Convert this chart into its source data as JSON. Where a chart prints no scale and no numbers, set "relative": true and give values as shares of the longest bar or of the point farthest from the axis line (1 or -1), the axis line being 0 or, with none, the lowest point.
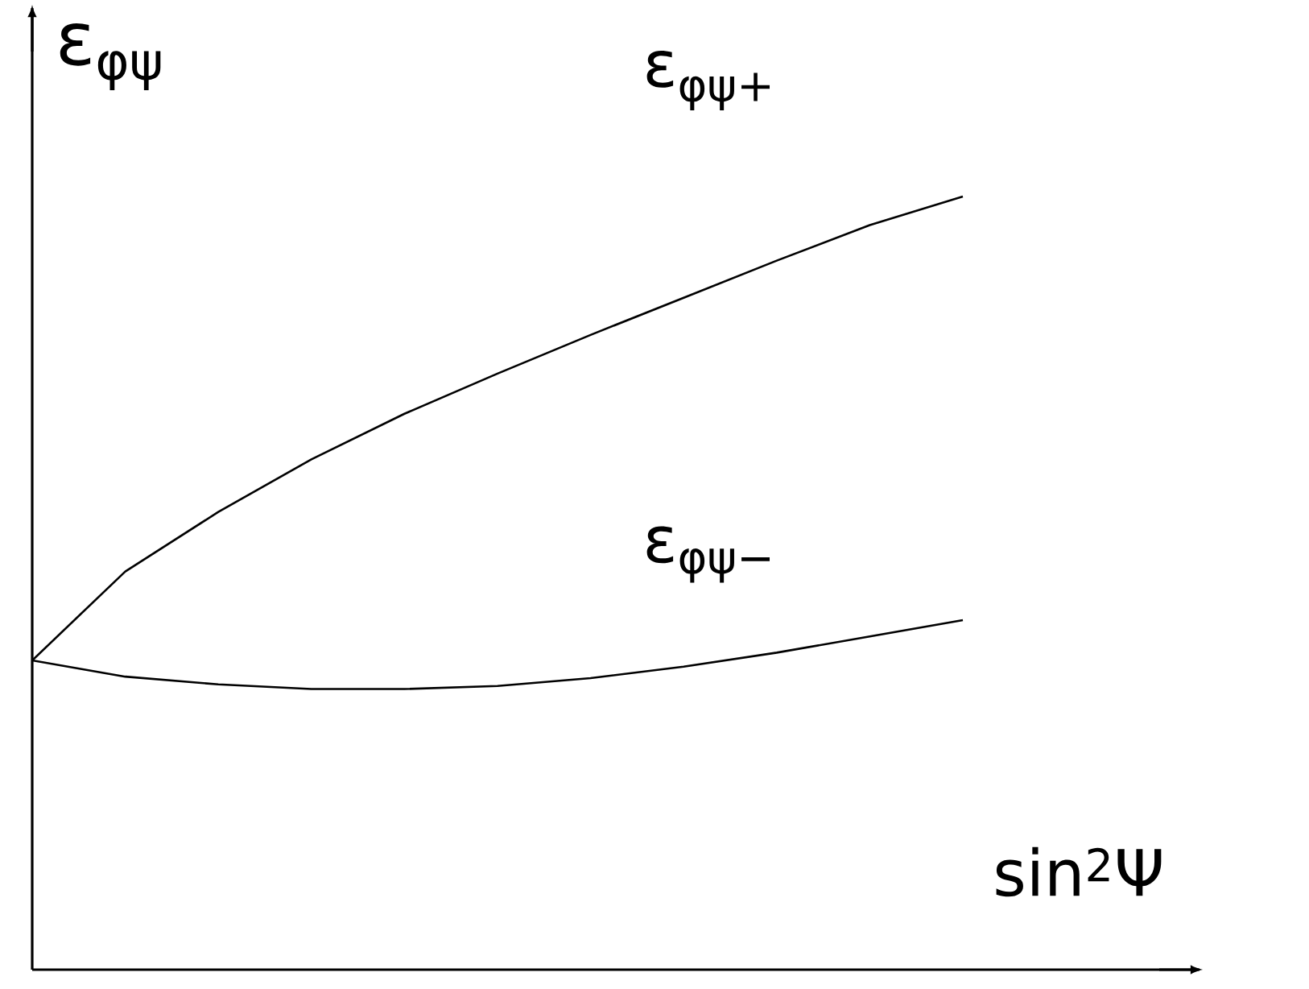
{
  "chart_data": {
    "type": "line",
    "relative": true,
    "xlabel": "sin$^{2}$Ψ",
    "ylabel": "ε$_{φψ}$",
    "categories": [
      null,
      null,
      null,
      null,
      null,
      null,
      null,
      null,
      null,
      null,
      null
    ],
    "series": [
      {
        "name": "ε$_{φψ+}$",
        "color": "#000000",
        "values": [
          0.4,
          0.515,
          0.592,
          0.66,
          0.719,
          0.771,
          0.821,
          0.869,
          0.917,
          0.963,
          1.0
        ]
      },
      {
        "name": "ε$_{φψ−}$",
        "color": "#000000",
        "values": [
          0.4,
          0.379,
          0.369,
          0.363,
          0.363,
          0.367,
          0.377,
          0.392,
          0.41,
          0.431,
          0.452
        ]
      }
    ]
  }
}
